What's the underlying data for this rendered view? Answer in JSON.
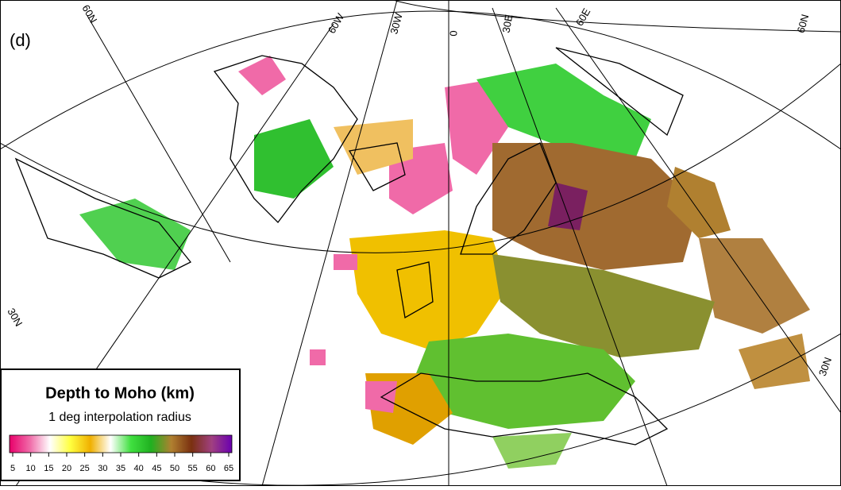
{
  "panel_label": "(d)",
  "graticule_labels": [
    "60N",
    "60W",
    "30W",
    "0",
    "30E",
    "60E",
    "60N",
    "30N",
    "30N"
  ],
  "legend": {
    "title": "Depth to Moho (km)",
    "subtitle": "1 deg interpolation radius",
    "colorbar": {
      "range": [
        5,
        65
      ],
      "ticks": [
        5,
        10,
        15,
        20,
        25,
        30,
        35,
        40,
        45,
        50,
        55,
        60,
        65
      ],
      "colors": [
        "#e8006a",
        "#f06aa8",
        "#ffffff",
        "#ffff40",
        "#f0b000",
        "#ffffff",
        "#40e040",
        "#20b020",
        "#b08030",
        "#7a3010",
        "#a04080",
        "#6a00b0"
      ]
    }
  }
}
